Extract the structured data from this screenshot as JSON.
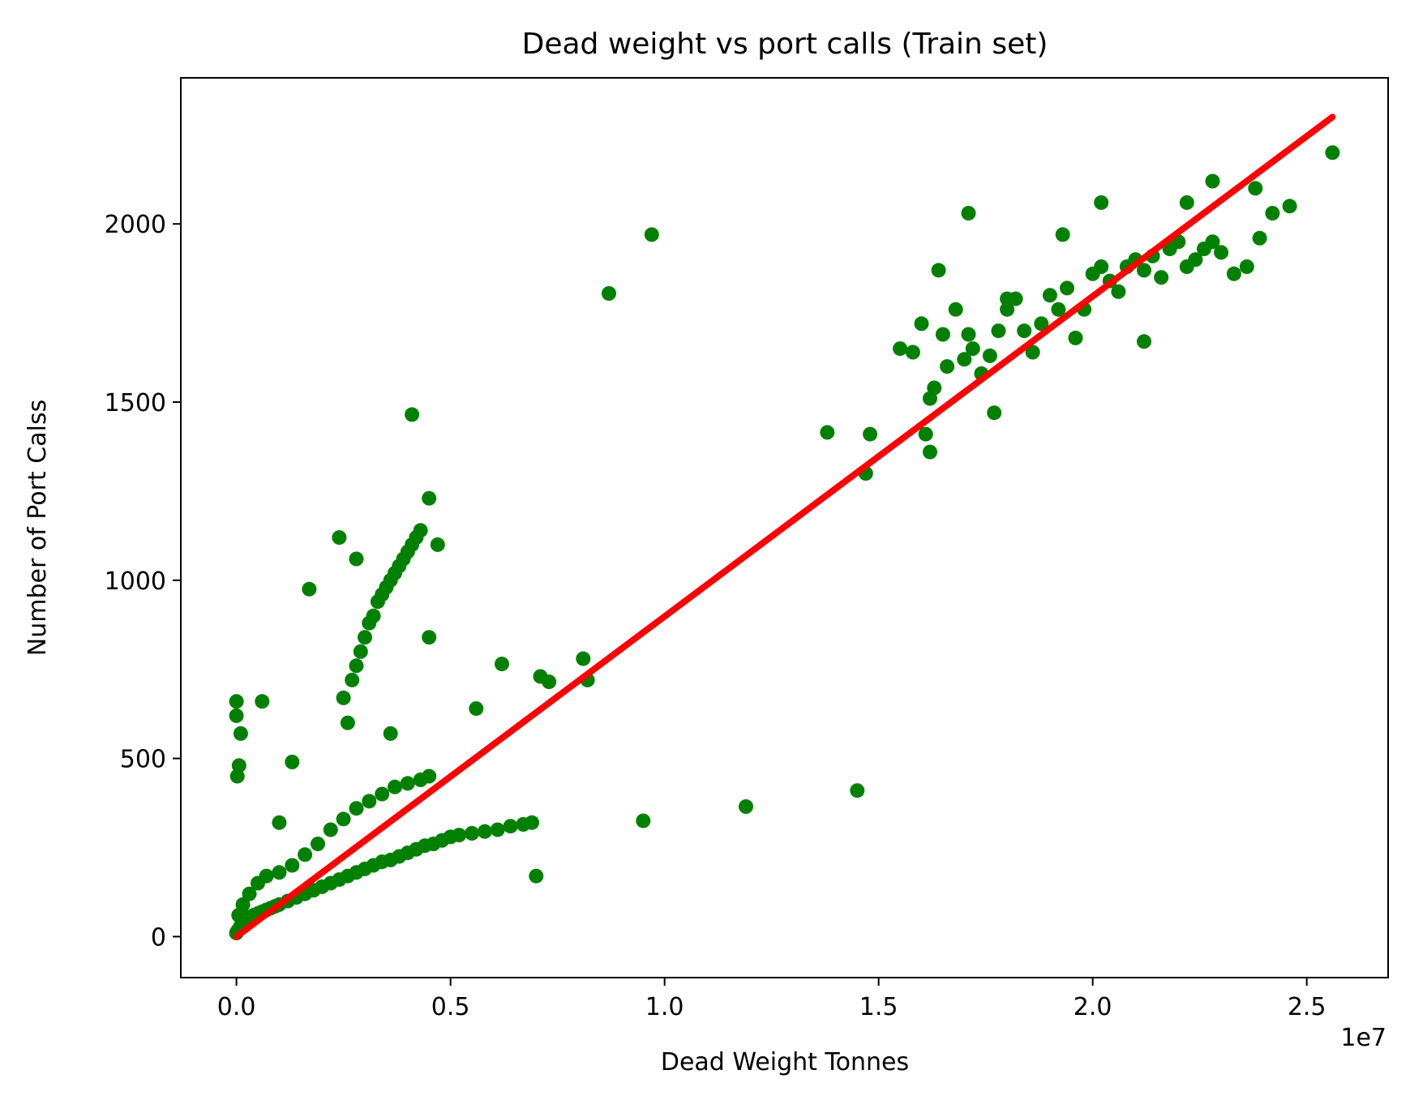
{
  "chart_data": {
    "type": "scatter",
    "title": "Dead weight vs port calls (Train set)",
    "xlabel": "Dead Weight Tonnes",
    "ylabel": "Number of Port Calss",
    "x_offset_label": "1e7",
    "xlim": [
      -1300000,
      26900000
    ],
    "ylim": [
      -115,
      2410
    ],
    "x_ticks": [
      0,
      5000000,
      10000000,
      15000000,
      20000000,
      25000000
    ],
    "x_tick_labels": [
      "0.0",
      "0.5",
      "1.0",
      "1.5",
      "2.0",
      "2.5"
    ],
    "y_ticks": [
      0,
      500,
      1000,
      1500,
      2000
    ],
    "y_tick_labels": [
      "0",
      "500",
      "1000",
      "1500",
      "2000"
    ],
    "grid": false,
    "colors": {
      "points": "#008000",
      "fit_line": "#ff0000"
    },
    "series": [
      {
        "kind": "points",
        "x": [
          0,
          20000,
          50000,
          80000,
          100000,
          150000,
          200000,
          250000,
          300000,
          400000,
          500000,
          600000,
          700000,
          800000,
          900000,
          1000000,
          1200000,
          1400000,
          1600000,
          1800000,
          2000000,
          2200000,
          2400000,
          2600000,
          2800000,
          3000000,
          3200000,
          3400000,
          3600000,
          3800000,
          4000000,
          4200000,
          4400000,
          4600000,
          4800000,
          5000000,
          5200000,
          5500000,
          5800000,
          6100000,
          6400000,
          6700000,
          6900000,
          7000000,
          50000,
          150000,
          300000,
          500000,
          700000,
          1000000,
          1300000,
          1600000,
          1900000,
          2200000,
          2500000,
          2800000,
          3100000,
          3400000,
          3700000,
          4000000,
          4300000,
          4500000,
          2700000,
          2800000,
          2900000,
          3000000,
          3100000,
          3200000,
          3300000,
          3400000,
          3500000,
          3600000,
          3700000,
          3800000,
          3900000,
          4000000,
          4100000,
          4200000,
          4300000,
          4500000,
          4700000,
          2500000,
          2600000,
          0,
          0,
          20000,
          60000,
          100000,
          600000,
          1000000,
          1300000,
          1700000,
          2400000,
          2800000,
          3600000,
          4100000,
          4500000,
          5600000,
          6200000,
          7100000,
          7300000,
          8100000,
          8200000,
          9500000,
          11900000,
          14500000,
          8700000,
          9700000,
          13800000,
          14800000,
          14700000,
          15500000,
          15800000,
          16000000,
          16100000,
          16200000,
          16300000,
          16500000,
          16600000,
          16800000,
          17000000,
          17100000,
          17200000,
          17400000,
          17600000,
          17800000,
          18000000,
          18200000,
          18400000,
          18600000,
          18800000,
          19000000,
          19200000,
          19400000,
          19600000,
          19800000,
          20000000,
          20200000,
          20400000,
          20600000,
          20800000,
          21000000,
          21200000,
          21400000,
          21600000,
          21800000,
          22000000,
          22200000,
          22400000,
          22600000,
          22800000,
          23000000,
          23300000,
          23600000,
          23900000,
          24200000,
          24600000,
          25600000,
          17700000,
          16400000,
          16200000,
          17100000,
          20200000,
          22200000,
          22800000,
          21200000,
          19300000,
          18000000,
          23800000
        ],
        "y": [
          10,
          15,
          20,
          25,
          30,
          40,
          45,
          50,
          55,
          60,
          65,
          70,
          75,
          80,
          85,
          90,
          100,
          110,
          120,
          130,
          140,
          150,
          160,
          170,
          180,
          190,
          200,
          210,
          215,
          225,
          235,
          245,
          255,
          260,
          270,
          280,
          285,
          290,
          295,
          300,
          310,
          315,
          320,
          170,
          60,
          90,
          120,
          150,
          170,
          180,
          200,
          230,
          260,
          300,
          330,
          360,
          380,
          400,
          420,
          430,
          440,
          450,
          720,
          760,
          800,
          840,
          880,
          900,
          940,
          960,
          980,
          1000,
          1020,
          1040,
          1060,
          1080,
          1100,
          1120,
          1140,
          1230,
          1100,
          670,
          600,
          660,
          620,
          450,
          480,
          570,
          660,
          320,
          490,
          975,
          1120,
          1060,
          570,
          1465,
          840,
          640,
          765,
          730,
          715,
          780,
          720,
          325,
          365,
          410,
          1805,
          1970,
          1415,
          1410,
          1300,
          1650,
          1640,
          1720,
          1410,
          1510,
          1540,
          1690,
          1600,
          1760,
          1620,
          1690,
          1650,
          1580,
          1630,
          1700,
          1760,
          1790,
          1700,
          1640,
          1720,
          1800,
          1760,
          1820,
          1680,
          1760,
          1860,
          1880,
          1840,
          1810,
          1880,
          1900,
          1870,
          1910,
          1850,
          1930,
          1950,
          1880,
          1900,
          1930,
          1950,
          1920,
          1860,
          1880,
          1960,
          2030,
          2050,
          2200,
          1470,
          1870,
          1360,
          2030,
          2060,
          2060,
          2120,
          1670,
          1970,
          1790,
          2100
        ]
      },
      {
        "kind": "fit-line",
        "x": [
          0,
          25600000
        ],
        "y": [
          0,
          2300
        ]
      }
    ]
  }
}
